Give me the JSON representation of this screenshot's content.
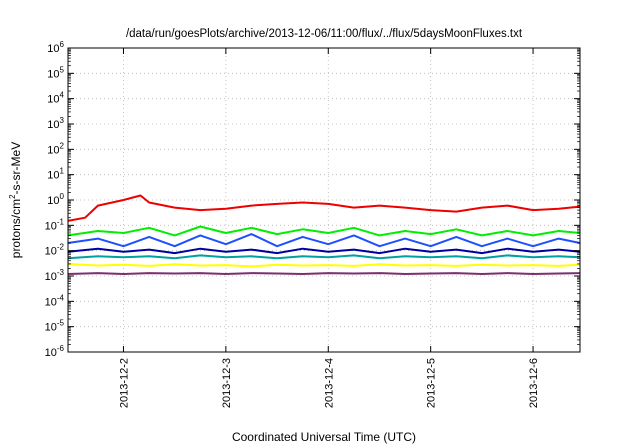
{
  "chart_data": {
    "type": "line",
    "title": "/data/run/goesPlots/archive/2013-12-06/11:00/flux/../flux/5daysMoonFluxes.txt",
    "xlabel": "Coordinated Universal Time (UTC)",
    "ylabel_parts": {
      "pre": "protons/cm",
      "sup": "2",
      "post": "-s-sr-MeV"
    },
    "y_scale": "log",
    "ylim": [
      1e-06,
      1000000.0
    ],
    "xlim": [
      "2013-12-01 11:00",
      "2013-12-06 11:00"
    ],
    "grid": true,
    "legend": "none",
    "y_ticks": [
      {
        "value": 1e-06,
        "base": "10",
        "exp": "-6"
      },
      {
        "value": 1e-05,
        "base": "10",
        "exp": "-5"
      },
      {
        "value": 0.0001,
        "base": "10",
        "exp": "-4"
      },
      {
        "value": 0.001,
        "base": "10",
        "exp": "-3"
      },
      {
        "value": 0.01,
        "base": "10",
        "exp": "-2"
      },
      {
        "value": 0.1,
        "base": "10",
        "exp": "-1"
      },
      {
        "value": 1.0,
        "base": "10",
        "exp": "0"
      },
      {
        "value": 10.0,
        "base": "10",
        "exp": "1"
      },
      {
        "value": 100.0,
        "base": "10",
        "exp": "2"
      },
      {
        "value": 1000.0,
        "base": "10",
        "exp": "3"
      },
      {
        "value": 10000.0,
        "base": "10",
        "exp": "4"
      },
      {
        "value": 100000.0,
        "base": "10",
        "exp": "5"
      },
      {
        "value": 1000000.0,
        "base": "10",
        "exp": "6"
      }
    ],
    "x_ticks": [
      {
        "x": "2013-12-02 00:00",
        "label": "2013-12-2"
      },
      {
        "x": "2013-12-03 00:00",
        "label": "2013-12-3"
      },
      {
        "x": "2013-12-04 00:00",
        "label": "2013-12-4"
      },
      {
        "x": "2013-12-05 00:00",
        "label": "2013-12-5"
      },
      {
        "x": "2013-12-06 00:00",
        "label": "2013-12-6"
      }
    ],
    "series": [
      {
        "color": "#7b2f6e",
        "points": [
          [
            "2013-12-01 11:00",
            0.0012
          ],
          [
            "2013-12-01 18:00",
            0.0013
          ],
          [
            "2013-12-02 00:00",
            0.0012
          ],
          [
            "2013-12-02 06:00",
            0.0013
          ],
          [
            "2013-12-02 12:00",
            0.00125
          ],
          [
            "2013-12-02 18:00",
            0.0013
          ],
          [
            "2013-12-03 00:00",
            0.0012
          ],
          [
            "2013-12-03 06:00",
            0.0013
          ],
          [
            "2013-12-03 12:00",
            0.00125
          ],
          [
            "2013-12-03 18:00",
            0.0012
          ],
          [
            "2013-12-04 00:00",
            0.0013
          ],
          [
            "2013-12-04 06:00",
            0.00125
          ],
          [
            "2013-12-04 12:00",
            0.0013
          ],
          [
            "2013-12-04 18:00",
            0.0012
          ],
          [
            "2013-12-05 00:00",
            0.00125
          ],
          [
            "2013-12-05 06:00",
            0.0013
          ],
          [
            "2013-12-05 12:00",
            0.0012
          ],
          [
            "2013-12-05 18:00",
            0.0013
          ],
          [
            "2013-12-06 00:00",
            0.0012
          ],
          [
            "2013-12-06 06:00",
            0.00125
          ],
          [
            "2013-12-06 11:00",
            0.0013
          ]
        ]
      },
      {
        "color": "#ffff00",
        "points": [
          [
            "2013-12-01 11:00",
            0.003
          ],
          [
            "2013-12-01 18:00",
            0.0026
          ],
          [
            "2013-12-02 00:00",
            0.0028
          ],
          [
            "2013-12-02 06:00",
            0.0025
          ],
          [
            "2013-12-02 12:00",
            0.0029
          ],
          [
            "2013-12-02 18:00",
            0.0026
          ],
          [
            "2013-12-03 00:00",
            0.0027
          ],
          [
            "2013-12-03 06:00",
            0.0024
          ],
          [
            "2013-12-03 12:00",
            0.0028
          ],
          [
            "2013-12-03 18:00",
            0.0026
          ],
          [
            "2013-12-04 00:00",
            0.0027
          ],
          [
            "2013-12-04 06:00",
            0.0025
          ],
          [
            "2013-12-04 12:00",
            0.0029
          ],
          [
            "2013-12-04 18:00",
            0.0026
          ],
          [
            "2013-12-05 00:00",
            0.0027
          ],
          [
            "2013-12-05 06:00",
            0.0025
          ],
          [
            "2013-12-05 12:00",
            0.0028
          ],
          [
            "2013-12-05 18:00",
            0.0026
          ],
          [
            "2013-12-06 00:00",
            0.0027
          ],
          [
            "2013-12-06 06:00",
            0.0025
          ],
          [
            "2013-12-06 11:00",
            0.0028
          ]
        ]
      },
      {
        "color": "#00a0a0",
        "points": [
          [
            "2013-12-01 11:00",
            0.005
          ],
          [
            "2013-12-01 18:00",
            0.006
          ],
          [
            "2013-12-02 00:00",
            0.0055
          ],
          [
            "2013-12-02 06:00",
            0.006
          ],
          [
            "2013-12-02 12:00",
            0.005
          ],
          [
            "2013-12-02 18:00",
            0.0065
          ],
          [
            "2013-12-03 00:00",
            0.0055
          ],
          [
            "2013-12-03 06:00",
            0.006
          ],
          [
            "2013-12-03 12:00",
            0.005
          ],
          [
            "2013-12-03 18:00",
            0.006
          ],
          [
            "2013-12-04 00:00",
            0.0055
          ],
          [
            "2013-12-04 06:00",
            0.0065
          ],
          [
            "2013-12-04 12:00",
            0.005
          ],
          [
            "2013-12-04 18:00",
            0.006
          ],
          [
            "2013-12-05 00:00",
            0.0055
          ],
          [
            "2013-12-05 06:00",
            0.006
          ],
          [
            "2013-12-05 12:00",
            0.005
          ],
          [
            "2013-12-05 18:00",
            0.0065
          ],
          [
            "2013-12-06 00:00",
            0.0055
          ],
          [
            "2013-12-06 06:00",
            0.006
          ],
          [
            "2013-12-06 11:00",
            0.0055
          ]
        ]
      },
      {
        "color": "#0000a0",
        "points": [
          [
            "2013-12-01 11:00",
            0.009
          ],
          [
            "2013-12-01 18:00",
            0.012
          ],
          [
            "2013-12-02 00:00",
            0.009
          ],
          [
            "2013-12-02 06:00",
            0.011
          ],
          [
            "2013-12-02 12:00",
            0.008
          ],
          [
            "2013-12-02 18:00",
            0.012
          ],
          [
            "2013-12-03 00:00",
            0.009
          ],
          [
            "2013-12-03 06:00",
            0.011
          ],
          [
            "2013-12-03 12:00",
            0.008
          ],
          [
            "2013-12-03 18:00",
            0.012
          ],
          [
            "2013-12-04 00:00",
            0.009
          ],
          [
            "2013-12-04 06:00",
            0.011
          ],
          [
            "2013-12-04 12:00",
            0.008
          ],
          [
            "2013-12-04 18:00",
            0.012
          ],
          [
            "2013-12-05 00:00",
            0.009
          ],
          [
            "2013-12-05 06:00",
            0.011
          ],
          [
            "2013-12-05 12:00",
            0.008
          ],
          [
            "2013-12-05 18:00",
            0.012
          ],
          [
            "2013-12-06 00:00",
            0.009
          ],
          [
            "2013-12-06 06:00",
            0.011
          ],
          [
            "2013-12-06 11:00",
            0.009
          ]
        ]
      },
      {
        "color": "#1e50ff",
        "points": [
          [
            "2013-12-01 11:00",
            0.02
          ],
          [
            "2013-12-01 18:00",
            0.03
          ],
          [
            "2013-12-02 00:00",
            0.015
          ],
          [
            "2013-12-02 06:00",
            0.035
          ],
          [
            "2013-12-02 12:00",
            0.015
          ],
          [
            "2013-12-02 18:00",
            0.04
          ],
          [
            "2013-12-03 00:00",
            0.018
          ],
          [
            "2013-12-03 06:00",
            0.045
          ],
          [
            "2013-12-03 12:00",
            0.015
          ],
          [
            "2013-12-03 18:00",
            0.035
          ],
          [
            "2013-12-04 00:00",
            0.018
          ],
          [
            "2013-12-04 06:00",
            0.04
          ],
          [
            "2013-12-04 12:00",
            0.015
          ],
          [
            "2013-12-04 18:00",
            0.03
          ],
          [
            "2013-12-05 00:00",
            0.015
          ],
          [
            "2013-12-05 06:00",
            0.035
          ],
          [
            "2013-12-05 12:00",
            0.015
          ],
          [
            "2013-12-05 18:00",
            0.03
          ],
          [
            "2013-12-06 00:00",
            0.015
          ],
          [
            "2013-12-06 06:00",
            0.03
          ],
          [
            "2013-12-06 11:00",
            0.02
          ]
        ]
      },
      {
        "color": "#00ee00",
        "points": [
          [
            "2013-12-01 11:00",
            0.04
          ],
          [
            "2013-12-01 18:00",
            0.06
          ],
          [
            "2013-12-02 00:00",
            0.05
          ],
          [
            "2013-12-02 06:00",
            0.08
          ],
          [
            "2013-12-02 12:00",
            0.04
          ],
          [
            "2013-12-02 18:00",
            0.09
          ],
          [
            "2013-12-03 00:00",
            0.05
          ],
          [
            "2013-12-03 06:00",
            0.08
          ],
          [
            "2013-12-03 12:00",
            0.045
          ],
          [
            "2013-12-03 18:00",
            0.07
          ],
          [
            "2013-12-04 00:00",
            0.05
          ],
          [
            "2013-12-04 06:00",
            0.08
          ],
          [
            "2013-12-04 12:00",
            0.04
          ],
          [
            "2013-12-04 18:00",
            0.06
          ],
          [
            "2013-12-05 00:00",
            0.045
          ],
          [
            "2013-12-05 06:00",
            0.07
          ],
          [
            "2013-12-05 12:00",
            0.04
          ],
          [
            "2013-12-05 18:00",
            0.06
          ],
          [
            "2013-12-06 00:00",
            0.04
          ],
          [
            "2013-12-06 06:00",
            0.06
          ],
          [
            "2013-12-06 11:00",
            0.05
          ]
        ]
      },
      {
        "color": "#ee0000",
        "points": [
          [
            "2013-12-01 11:00",
            0.15
          ],
          [
            "2013-12-01 15:00",
            0.2
          ],
          [
            "2013-12-01 18:00",
            0.6
          ],
          [
            "2013-12-02 00:00",
            1.0
          ],
          [
            "2013-12-02 04:00",
            1.5
          ],
          [
            "2013-12-02 06:00",
            0.8
          ],
          [
            "2013-12-02 12:00",
            0.5
          ],
          [
            "2013-12-02 18:00",
            0.4
          ],
          [
            "2013-12-03 00:00",
            0.45
          ],
          [
            "2013-12-03 06:00",
            0.6
          ],
          [
            "2013-12-03 12:00",
            0.7
          ],
          [
            "2013-12-03 18:00",
            0.8
          ],
          [
            "2013-12-04 00:00",
            0.7
          ],
          [
            "2013-12-04 06:00",
            0.5
          ],
          [
            "2013-12-04 12:00",
            0.6
          ],
          [
            "2013-12-04 18:00",
            0.5
          ],
          [
            "2013-12-05 00:00",
            0.4
          ],
          [
            "2013-12-05 06:00",
            0.35
          ],
          [
            "2013-12-05 12:00",
            0.5
          ],
          [
            "2013-12-05 18:00",
            0.6
          ],
          [
            "2013-12-06 00:00",
            0.4
          ],
          [
            "2013-12-06 06:00",
            0.45
          ],
          [
            "2013-12-06 11:00",
            0.55
          ]
        ]
      }
    ]
  }
}
